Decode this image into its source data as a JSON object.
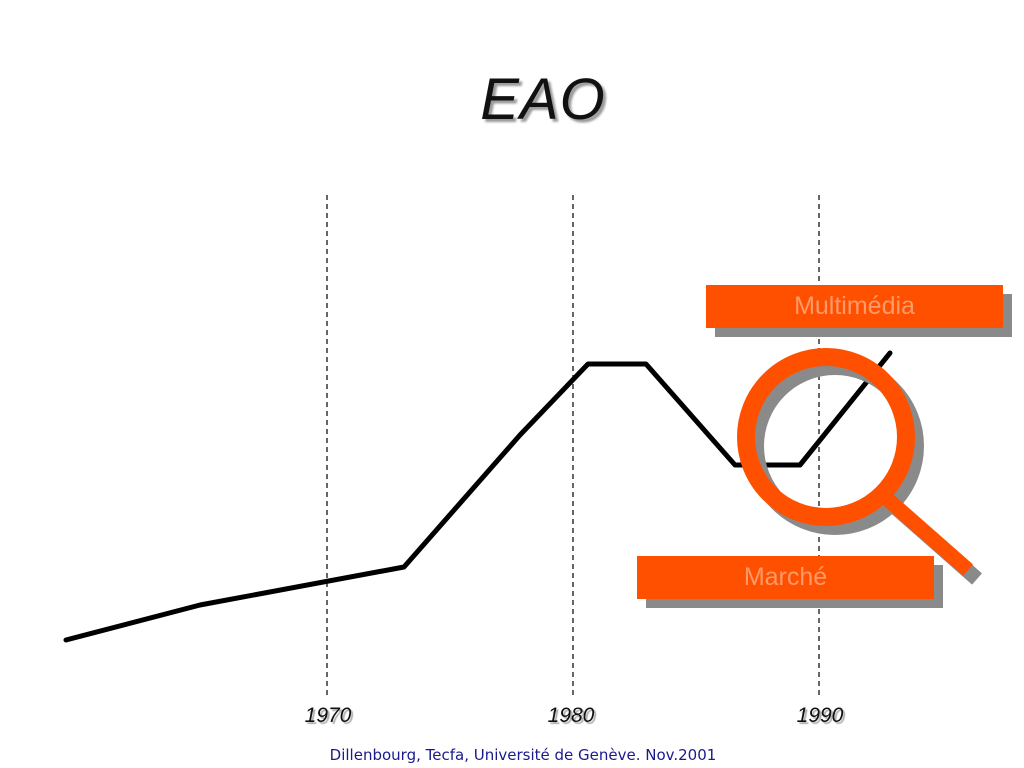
{
  "slide": {
    "title": "EAO",
    "footer": "Dillenbourg, Tecfa, Université de Genève. Nov.2001"
  },
  "timeline": {
    "years": [
      "1970",
      "1980",
      "1990"
    ]
  },
  "labels": {
    "multimedia": "Multimédia",
    "market": "Marché"
  },
  "colors": {
    "accent": "#ff5000",
    "shadow": "#8a8a8a",
    "line": "#000000",
    "footer": "#1a1a8c"
  },
  "icons": {
    "magnifier": "magnifying-glass-icon"
  }
}
